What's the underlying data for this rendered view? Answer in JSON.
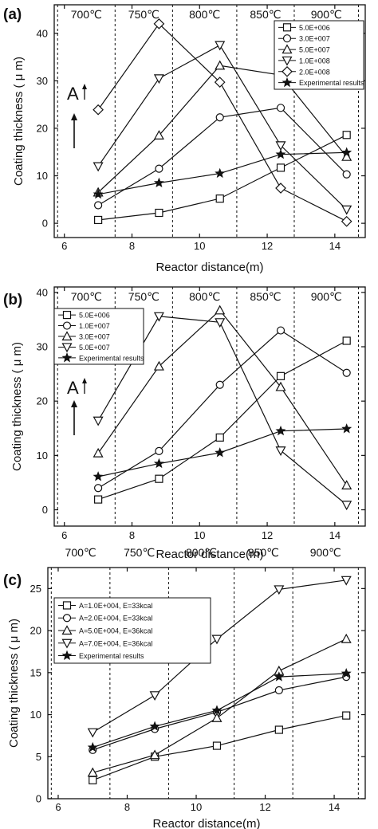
{
  "chart_data": [
    {
      "type": "line",
      "panel_label": "(a)",
      "xlabel": "Reactor distance(m)",
      "ylabel": "Coating thickness  ( μ m)",
      "xlim": [
        5.7,
        14.9
      ],
      "ylim": [
        -3,
        46
      ],
      "xticks": [
        6,
        8,
        10,
        12,
        14
      ],
      "yticks": [
        0,
        10,
        20,
        30,
        40
      ],
      "zones": [
        {
          "label": "700℃",
          "from": 5.8,
          "to": 7.5
        },
        {
          "label": "750℃",
          "from": 7.5,
          "to": 9.2
        },
        {
          "label": "800℃",
          "from": 9.2,
          "to": 11.1
        },
        {
          "label": "850℃",
          "from": 11.1,
          "to": 12.8
        },
        {
          "label": "900℃",
          "from": 12.8,
          "to": 14.7
        }
      ],
      "arrow_label": "A",
      "legend_position": "top-right",
      "x": [
        7.0,
        8.8,
        10.6,
        12.4,
        14.35
      ],
      "series": [
        {
          "name": "5.0E+006",
          "marker": "square",
          "values": [
            0.7,
            2.2,
            5.2,
            11.7,
            18.6
          ]
        },
        {
          "name": "3.0E+007",
          "marker": "circle",
          "values": [
            3.8,
            11.5,
            22.3,
            24.3,
            10.3
          ]
        },
        {
          "name": "5.0E+007",
          "marker": "triangle-up",
          "values": [
            6.5,
            18.5,
            33.2,
            31.2,
            14.0
          ]
        },
        {
          "name": "1.0E+008",
          "marker": "triangle-down",
          "values": [
            12.0,
            30.5,
            37.5,
            16.4,
            2.9
          ]
        },
        {
          "name": "2.0E+008",
          "marker": "diamond",
          "values": [
            23.9,
            42.0,
            29.7,
            7.4,
            0.4
          ]
        },
        {
          "name": "Experimental results",
          "marker": "star",
          "values": [
            6.1,
            8.5,
            10.5,
            14.5,
            14.9
          ]
        }
      ]
    },
    {
      "type": "line",
      "panel_label": "(b)",
      "xlabel": "Reactor distance(m)",
      "ylabel": "Coating thickness  ( μ m)",
      "xlim": [
        5.7,
        14.9
      ],
      "ylim": [
        -3,
        41
      ],
      "xticks": [
        6,
        8,
        10,
        12,
        14
      ],
      "yticks": [
        0,
        10,
        20,
        30,
        40
      ],
      "zones": [
        {
          "label": "700℃",
          "from": 5.8,
          "to": 7.5
        },
        {
          "label": "750℃",
          "from": 7.5,
          "to": 9.2
        },
        {
          "label": "800℃",
          "from": 9.2,
          "to": 11.1
        },
        {
          "label": "850℃",
          "from": 11.1,
          "to": 12.8
        },
        {
          "label": "900℃",
          "from": 12.8,
          "to": 14.7
        }
      ],
      "arrow_label": "A",
      "legend_position": "top-left",
      "x": [
        7.0,
        8.8,
        10.6,
        12.4,
        14.35
      ],
      "series": [
        {
          "name": "5.0E+006",
          "marker": "square",
          "values": [
            1.9,
            5.7,
            13.3,
            24.6,
            31.1
          ]
        },
        {
          "name": "1.0E+007",
          "marker": "circle",
          "values": [
            4.0,
            10.8,
            23.0,
            33.0,
            25.2
          ]
        },
        {
          "name": "3.0E+007",
          "marker": "triangle-up",
          "values": [
            10.4,
            26.4,
            36.7,
            22.6,
            4.5
          ]
        },
        {
          "name": "5.0E+007",
          "marker": "triangle-down",
          "values": [
            16.4,
            35.6,
            34.5,
            10.9,
            0.9
          ]
        },
        {
          "name": "Experimental results",
          "marker": "star",
          "values": [
            6.1,
            8.5,
            10.5,
            14.5,
            14.9
          ]
        }
      ]
    },
    {
      "type": "line",
      "panel_label": "(c)",
      "xlabel": "Reactor distance(m)",
      "ylabel": "Coating thickness  ( μ m)",
      "xlim": [
        5.7,
        14.9
      ],
      "ylim": [
        0,
        27.5
      ],
      "xticks": [
        6,
        8,
        10,
        12,
        14
      ],
      "yticks": [
        0,
        5,
        10,
        15,
        20,
        25
      ],
      "zones": [
        {
          "label": "700℃",
          "from": 5.8,
          "to": 7.5
        },
        {
          "label": "750℃",
          "from": 7.5,
          "to": 9.2
        },
        {
          "label": "800℃",
          "from": 9.2,
          "to": 11.1
        },
        {
          "label": "850℃",
          "from": 11.1,
          "to": 12.8
        },
        {
          "label": "900℃",
          "from": 12.8,
          "to": 14.7
        }
      ],
      "legend_position": "top-left",
      "x": [
        7.0,
        8.8,
        10.6,
        12.4,
        14.35
      ],
      "series": [
        {
          "name": "A=1.0E+004, E=33kcal",
          "marker": "square",
          "values": [
            2.2,
            5.0,
            6.3,
            8.2,
            9.9
          ]
        },
        {
          "name": "A=2.0E+004, E=33kcal",
          "marker": "circle",
          "values": [
            5.8,
            8.3,
            10.3,
            12.9,
            14.5
          ]
        },
        {
          "name": "A=5.0E+004, E=36kcal",
          "marker": "triangle-up",
          "values": [
            3.1,
            5.2,
            9.6,
            15.2,
            19.0
          ]
        },
        {
          "name": "A=7.0E+004, E=36kcal",
          "marker": "triangle-down",
          "values": [
            7.9,
            12.3,
            19.0,
            24.9,
            26.0
          ]
        },
        {
          "name": "Experimental results",
          "marker": "star",
          "values": [
            6.1,
            8.6,
            10.5,
            14.5,
            14.9
          ]
        }
      ]
    }
  ]
}
